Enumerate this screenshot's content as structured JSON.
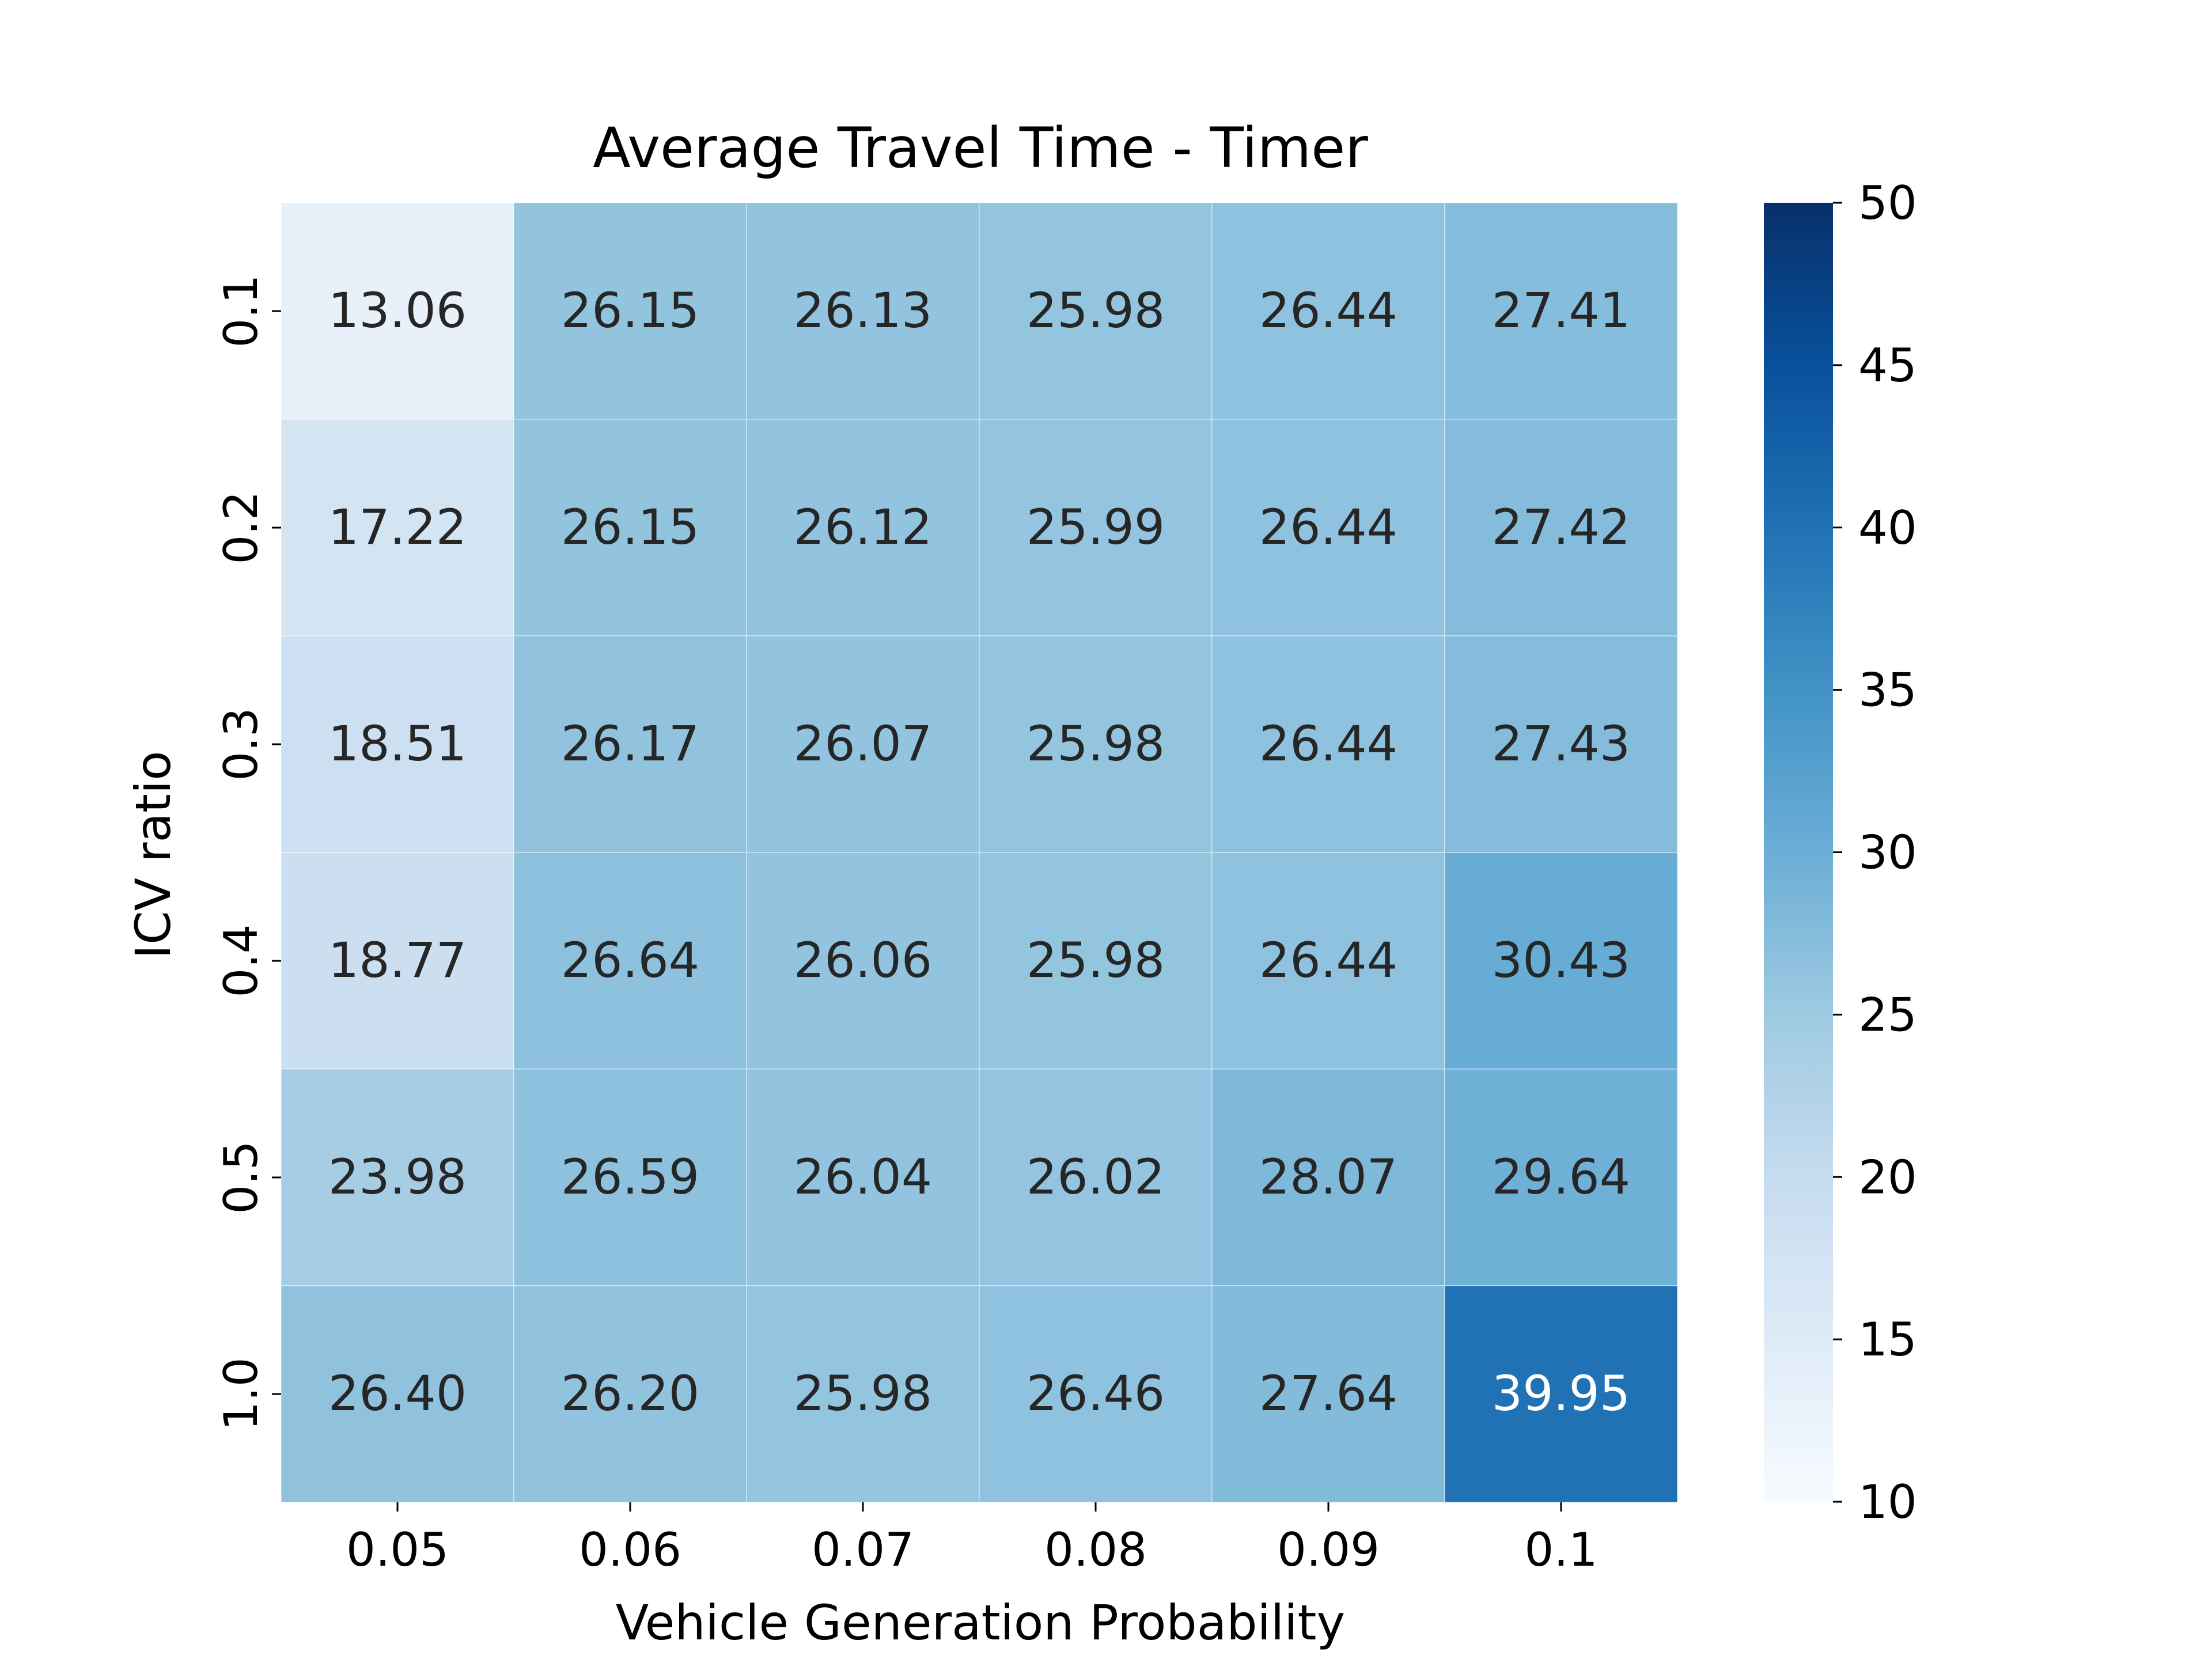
{
  "chart_data": {
    "type": "heatmap",
    "title": "Average Travel Time - Timer",
    "xlabel": "Vehicle Generation Probability",
    "ylabel": "ICV ratio",
    "x_categories": [
      "0.05",
      "0.06",
      "0.07",
      "0.08",
      "0.09",
      "0.1"
    ],
    "y_categories": [
      "0.1",
      "0.2",
      "0.3",
      "0.4",
      "0.5",
      "1.0"
    ],
    "values": [
      [
        13.06,
        26.15,
        26.13,
        25.98,
        26.44,
        27.41
      ],
      [
        17.22,
        26.15,
        26.12,
        25.99,
        26.44,
        27.42
      ],
      [
        18.51,
        26.17,
        26.07,
        25.98,
        26.44,
        27.43
      ],
      [
        18.77,
        26.64,
        26.06,
        25.98,
        26.44,
        30.43
      ],
      [
        23.98,
        26.59,
        26.04,
        26.02,
        28.07,
        29.64
      ],
      [
        26.4,
        26.2,
        25.98,
        26.46,
        27.64,
        39.95
      ]
    ],
    "value_labels": [
      [
        "13.06",
        "26.15",
        "26.13",
        "25.98",
        "26.44",
        "27.41"
      ],
      [
        "17.22",
        "26.15",
        "26.12",
        "25.99",
        "26.44",
        "27.42"
      ],
      [
        "18.51",
        "26.17",
        "26.07",
        "25.98",
        "26.44",
        "27.43"
      ],
      [
        "18.77",
        "26.64",
        "26.06",
        "25.98",
        "26.44",
        "30.43"
      ],
      [
        "23.98",
        "26.59",
        "26.04",
        "26.02",
        "28.07",
        "29.64"
      ],
      [
        "26.40",
        "26.20",
        "25.98",
        "26.46",
        "27.64",
        "39.95"
      ]
    ],
    "colorbar": {
      "range": [
        10,
        50
      ],
      "ticks": [
        "10",
        "15",
        "20",
        "25",
        "30",
        "35",
        "40",
        "45",
        "50"
      ],
      "colormap": "Blues"
    }
  }
}
